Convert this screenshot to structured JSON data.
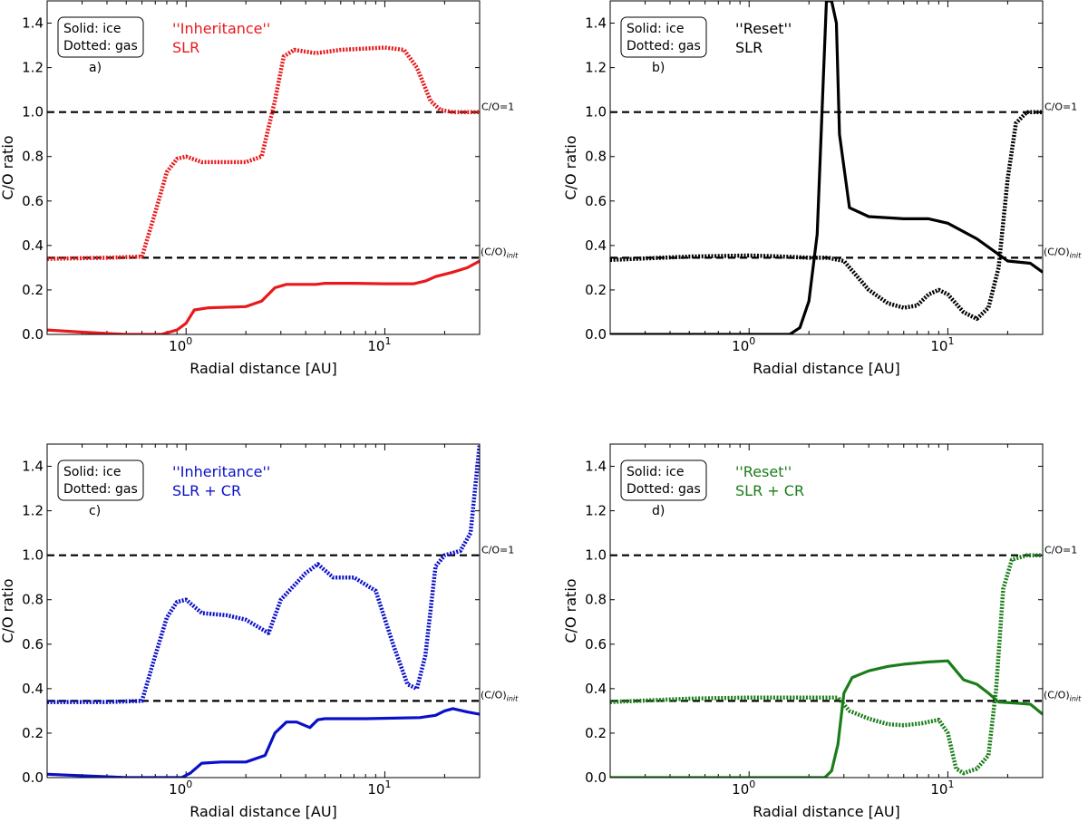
{
  "figure": {
    "xlabel": "Radial distance [AU]",
    "ylabel": "C/O ratio",
    "ref_label_one": "C/O=1",
    "ref_label_init_main": "(C/O)",
    "ref_label_init_sub": "init",
    "ref_values": [
      1.0,
      0.345
    ],
    "legend_line1": "Solid: ice",
    "legend_line2": "Dotted: gas",
    "yticks": [
      "0.0",
      "0.2",
      "0.4",
      "0.6",
      "0.8",
      "1.0",
      "1.2",
      "1.4"
    ],
    "xticks": [
      {
        "base": "10",
        "exp": "0",
        "value": 1
      },
      {
        "base": "10",
        "exp": "1",
        "value": 10
      }
    ]
  },
  "chart_data": [
    {
      "type": "line",
      "panel": "a)",
      "title_line1": "''Inheritance''",
      "title_line2": "SLR",
      "color": "#e8191c",
      "xscale": "log",
      "xlim": [
        0.2,
        30
      ],
      "ylim": [
        0,
        1.5
      ],
      "series": [
        {
          "name": "ice",
          "style": "solid",
          "x": [
            0.2,
            0.3,
            0.5,
            0.75,
            0.9,
            1.0,
            1.1,
            1.3,
            2.0,
            2.4,
            2.8,
            3.2,
            4.5,
            5.0,
            7.0,
            10.0,
            14.0,
            16.0,
            18.0,
            22.0,
            26.0,
            30.0
          ],
          "y": [
            0.02,
            0.01,
            0.0,
            0.0,
            0.02,
            0.05,
            0.11,
            0.12,
            0.125,
            0.15,
            0.21,
            0.225,
            0.225,
            0.23,
            0.23,
            0.228,
            0.228,
            0.24,
            0.26,
            0.28,
            0.3,
            0.33
          ]
        },
        {
          "name": "gas",
          "style": "dotted",
          "x": [
            0.2,
            0.4,
            0.6,
            0.7,
            0.8,
            0.9,
            1.0,
            1.2,
            2.0,
            2.4,
            2.8,
            3.1,
            3.5,
            4.5,
            6.0,
            10.0,
            12.5,
            14.5,
            17.0,
            19.0,
            22.0,
            30.0
          ],
          "y": [
            0.34,
            0.345,
            0.35,
            0.55,
            0.73,
            0.79,
            0.8,
            0.775,
            0.775,
            0.8,
            1.05,
            1.25,
            1.28,
            1.265,
            1.28,
            1.29,
            1.28,
            1.2,
            1.05,
            1.01,
            1.0,
            1.0
          ]
        }
      ]
    },
    {
      "type": "line",
      "panel": "b)",
      "title_line1": "''Reset''",
      "title_line2": "SLR",
      "color": "#000000",
      "xscale": "log",
      "xlim": [
        0.2,
        30
      ],
      "ylim": [
        0,
        1.5
      ],
      "series": [
        {
          "name": "ice",
          "style": "solid",
          "x": [
            0.2,
            1.0,
            1.6,
            1.8,
            2.0,
            2.2,
            2.35,
            2.45,
            2.6,
            2.75,
            2.85,
            3.2,
            4.0,
            6.0,
            8.0,
            10.0,
            14.0,
            18.0,
            20.0,
            26.0,
            30.0
          ],
          "y": [
            0.0,
            0.0,
            0.0,
            0.03,
            0.15,
            0.45,
            1.1,
            1.5,
            1.5,
            1.4,
            0.9,
            0.57,
            0.53,
            0.52,
            0.52,
            0.5,
            0.43,
            0.36,
            0.33,
            0.32,
            0.28
          ]
        },
        {
          "name": "gas",
          "style": "dotted",
          "x": [
            0.2,
            0.5,
            1.0,
            1.5,
            2.0,
            2.5,
            3.0,
            4.0,
            5.0,
            6.0,
            7.0,
            8.0,
            9.0,
            10.0,
            12.0,
            14.0,
            16.0,
            18.0,
            20.0,
            22.0,
            25.0,
            30.0
          ],
          "y": [
            0.335,
            0.35,
            0.355,
            0.35,
            0.345,
            0.345,
            0.33,
            0.2,
            0.14,
            0.12,
            0.13,
            0.18,
            0.2,
            0.18,
            0.1,
            0.07,
            0.12,
            0.3,
            0.7,
            0.95,
            1.0,
            1.0
          ]
        }
      ]
    },
    {
      "type": "line",
      "panel": "c)",
      "title_line1": "''Inheritance''",
      "title_line2": "SLR + CR",
      "color": "#0a10c8",
      "xscale": "log",
      "xlim": [
        0.2,
        30
      ],
      "ylim": [
        0,
        1.5
      ],
      "series": [
        {
          "name": "ice",
          "style": "solid",
          "x": [
            0.2,
            0.5,
            0.95,
            1.05,
            1.2,
            1.5,
            2.0,
            2.5,
            2.8,
            3.2,
            3.6,
            4.2,
            4.6,
            5.0,
            8.0,
            15.0,
            18.0,
            20.0,
            22.0,
            26.0,
            30.0
          ],
          "y": [
            0.015,
            0.0,
            0.0,
            0.02,
            0.065,
            0.07,
            0.07,
            0.1,
            0.2,
            0.25,
            0.25,
            0.225,
            0.26,
            0.265,
            0.265,
            0.27,
            0.28,
            0.3,
            0.31,
            0.295,
            0.285
          ]
        },
        {
          "name": "gas",
          "style": "dotted",
          "x": [
            0.2,
            0.4,
            0.6,
            0.7,
            0.8,
            0.9,
            1.0,
            1.2,
            1.6,
            2.0,
            2.6,
            3.0,
            4.0,
            4.6,
            5.5,
            7.0,
            9.0,
            11.0,
            13.0,
            14.5,
            16.0,
            18.0,
            20.0,
            24.0,
            27.0,
            30.0
          ],
          "y": [
            0.34,
            0.34,
            0.345,
            0.55,
            0.72,
            0.79,
            0.8,
            0.74,
            0.73,
            0.71,
            0.65,
            0.8,
            0.92,
            0.96,
            0.9,
            0.9,
            0.84,
            0.6,
            0.42,
            0.4,
            0.55,
            0.95,
            1.0,
            1.02,
            1.1,
            1.5
          ]
        }
      ]
    },
    {
      "type": "line",
      "panel": "d)",
      "title_line1": "''Reset''",
      "title_line2": "SLR + CR",
      "color": "#1a7d1a",
      "xscale": "log",
      "xlim": [
        0.2,
        30
      ],
      "ylim": [
        0,
        1.5
      ],
      "series": [
        {
          "name": "ice",
          "style": "solid",
          "x": [
            0.2,
            1.5,
            2.4,
            2.6,
            2.8,
            3.0,
            3.3,
            4.0,
            5.0,
            6.0,
            8.0,
            10.0,
            11.0,
            12.0,
            14.0,
            16.0,
            18.0,
            22.0,
            26.0,
            30.0
          ],
          "y": [
            0.0,
            0.0,
            0.0,
            0.03,
            0.15,
            0.38,
            0.45,
            0.48,
            0.5,
            0.51,
            0.52,
            0.525,
            0.48,
            0.44,
            0.42,
            0.38,
            0.34,
            0.335,
            0.33,
            0.285
          ]
        },
        {
          "name": "gas",
          "style": "dotted",
          "x": [
            0.2,
            0.5,
            1.0,
            2.0,
            2.8,
            3.2,
            4.0,
            5.0,
            6.0,
            7.5,
            9.0,
            10.0,
            11.0,
            12.0,
            14.0,
            16.0,
            17.5,
            19.0,
            21.0,
            25.0,
            30.0
          ],
          "y": [
            0.34,
            0.355,
            0.36,
            0.36,
            0.36,
            0.3,
            0.265,
            0.24,
            0.235,
            0.245,
            0.26,
            0.2,
            0.04,
            0.02,
            0.04,
            0.1,
            0.4,
            0.85,
            0.98,
            1.0,
            1.0
          ]
        }
      ]
    }
  ]
}
